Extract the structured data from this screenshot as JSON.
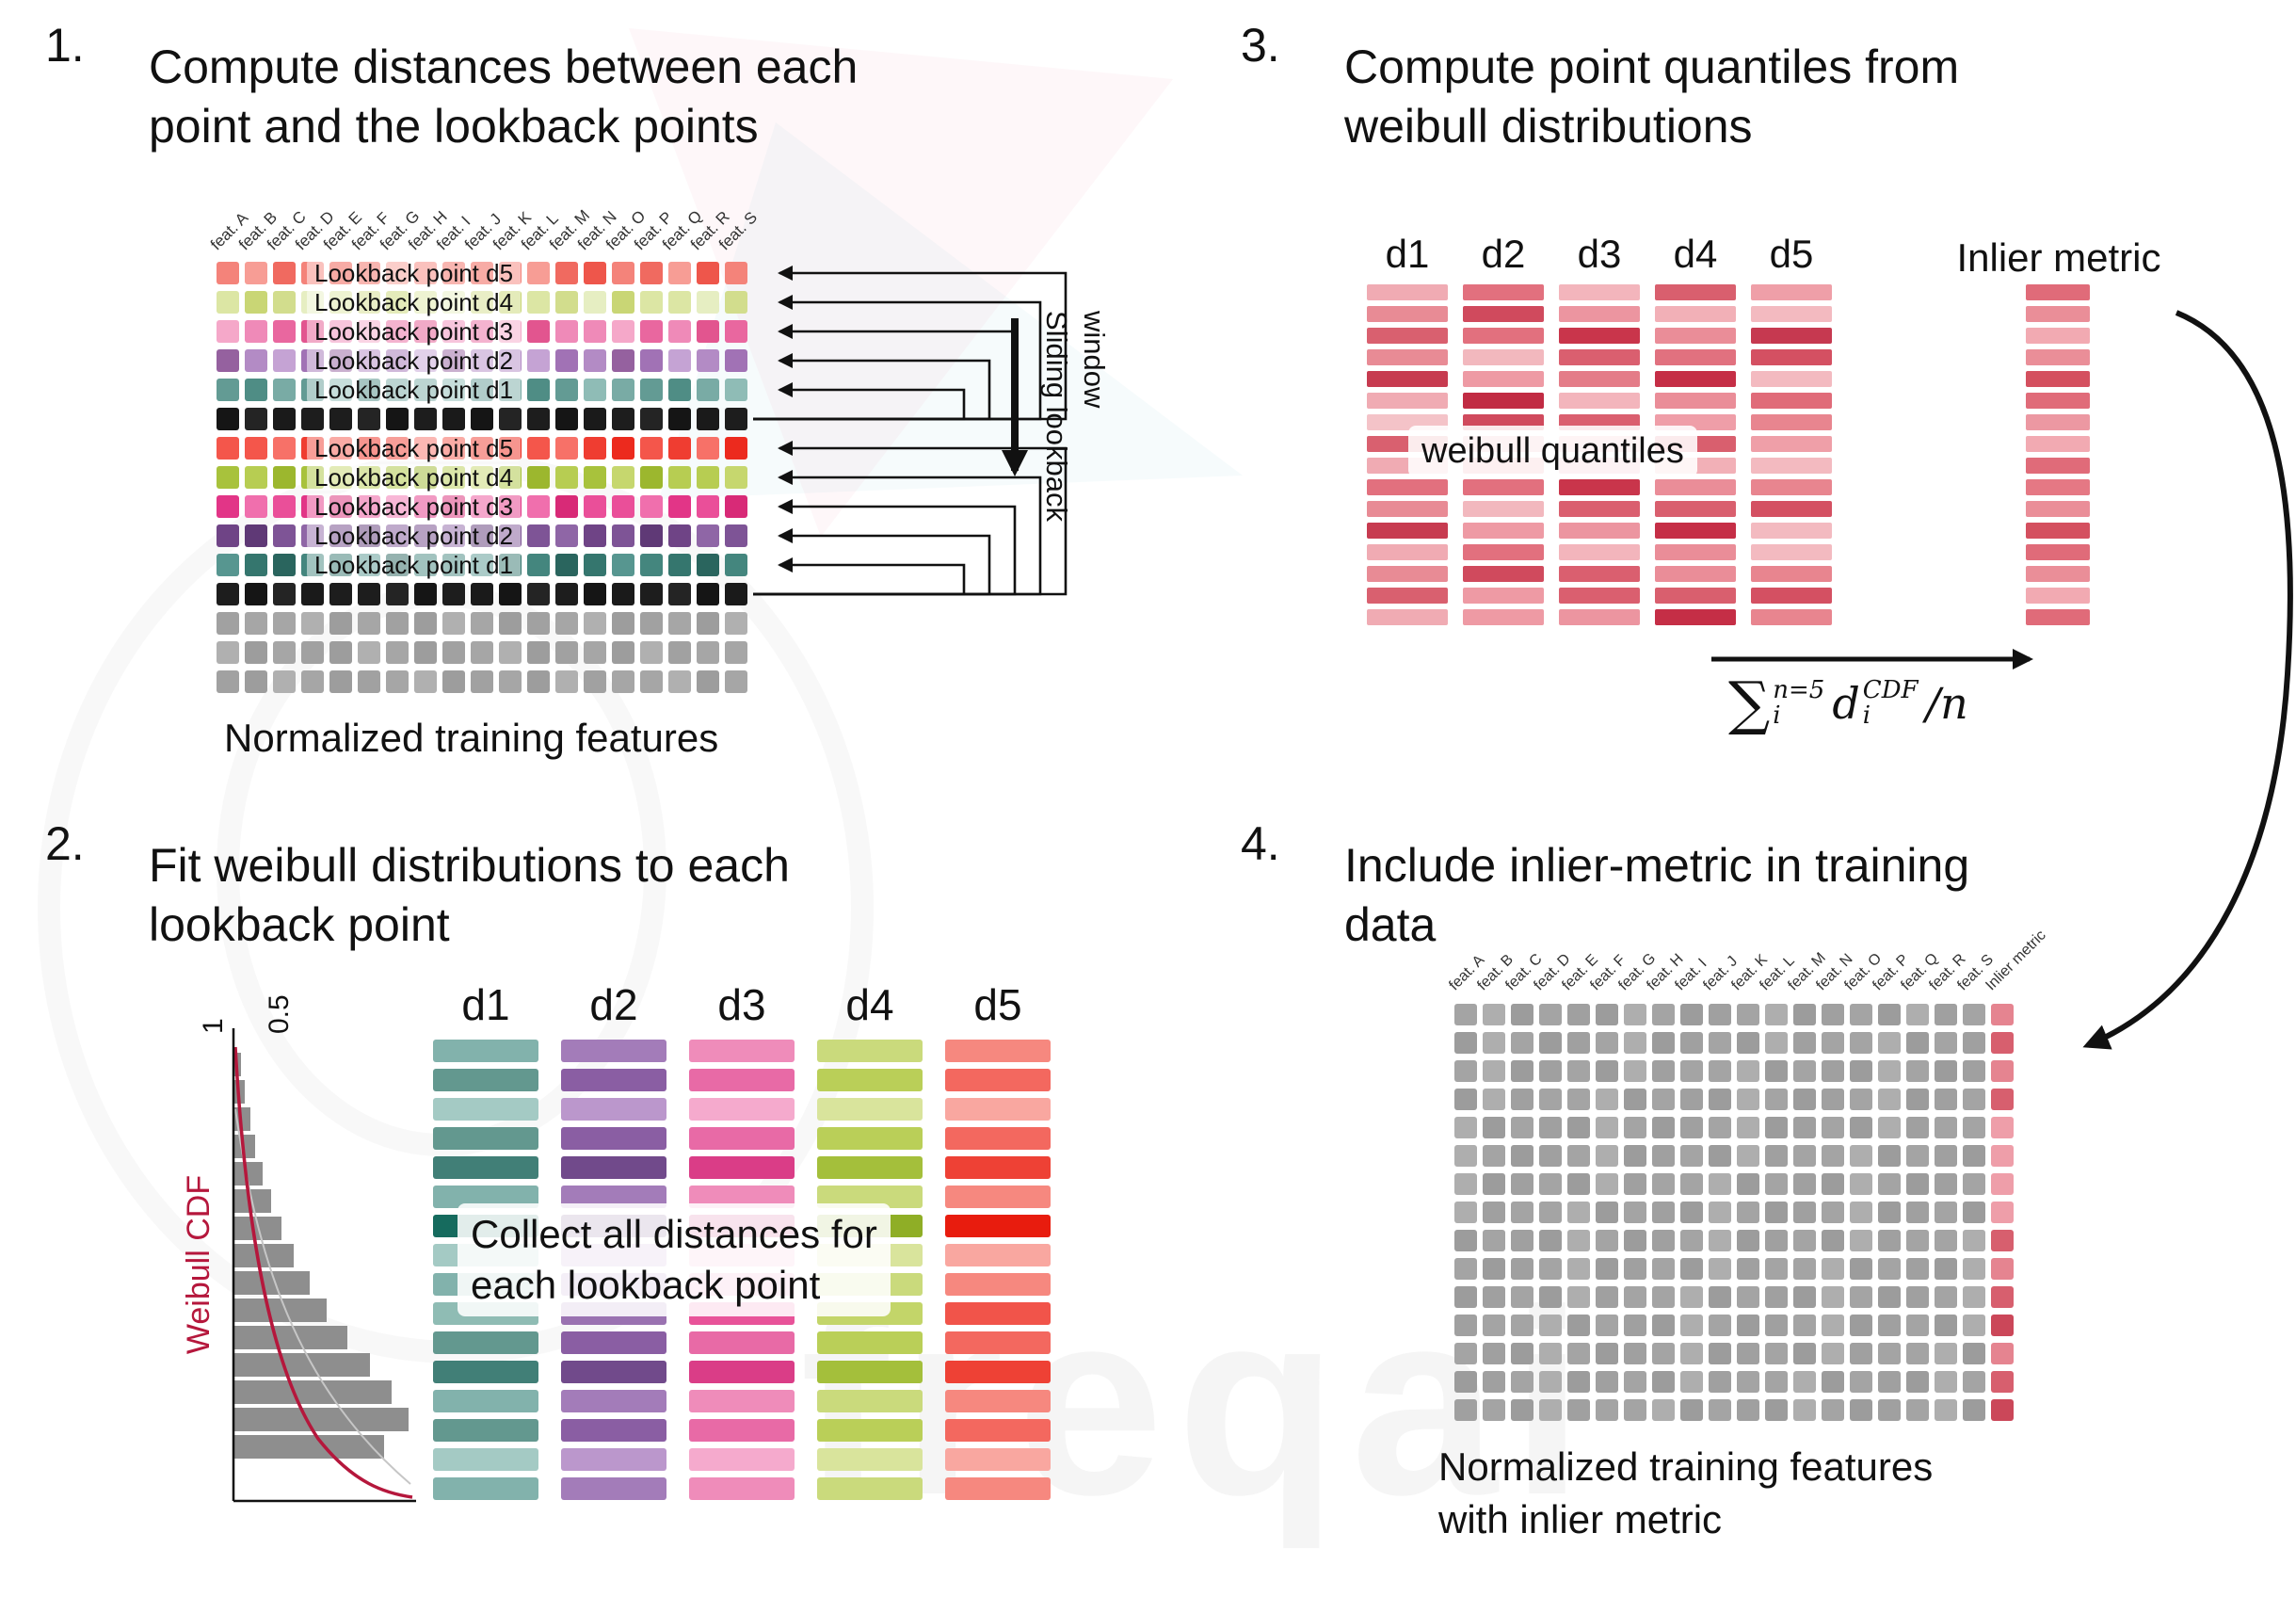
{
  "watermark": {
    "text": "freqai"
  },
  "features": [
    "feat. A",
    "feat. B",
    "feat. C",
    "feat. D",
    "feat. E",
    "feat. F",
    "feat. G",
    "feat. H",
    "feat. I",
    "feat. J",
    "feat. K",
    "feat. L",
    "feat. M",
    "feat. N",
    "feat. O",
    "feat. P",
    "feat. Q",
    "feat. R",
    "feat. S"
  ],
  "shade_pattern": [
    0,
    2,
    1,
    0,
    3,
    1,
    2,
    0,
    1,
    3,
    0,
    2,
    1,
    3,
    0,
    1,
    2,
    3,
    0
  ],
  "bar_pattern": [
    1,
    0,
    2,
    0,
    3,
    1,
    4,
    2,
    1,
    5,
    0,
    3,
    1,
    0,
    2,
    1
  ],
  "panel1": {
    "number": "1.",
    "title_line1": "Compute distances between each",
    "title_line2": "point and the lookback points",
    "caption": "Normalized training features",
    "sliding_label": "Sliding lookback window",
    "rows": [
      {
        "label": "Lookback point d5",
        "shades": [
          "#f4837a",
          "#f06a60",
          "#f79d95",
          "#ee564b"
        ]
      },
      {
        "label": "Lookback point d4",
        "shades": [
          "#dce6a4",
          "#d2dd8d",
          "#e6eec2",
          "#c9d675"
        ]
      },
      {
        "label": "Lookback point d3",
        "shades": [
          "#ef8ab8",
          "#e9679f",
          "#f5a8c9",
          "#e2558f"
        ]
      },
      {
        "label": "Lookback point d2",
        "shades": [
          "#b38bc5",
          "#a172b5",
          "#c5a3d4",
          "#95619f"
        ]
      },
      {
        "label": "Lookback point d1",
        "shades": [
          "#79aba5",
          "#639b94",
          "#8fbcb6",
          "#4f8d85"
        ]
      },
      {
        "label": null,
        "shades": [
          "#1d1d1d",
          "#151515",
          "#242424",
          "#1a1a1a"
        ]
      },
      {
        "label": "Lookback point d5",
        "shades": [
          "#f4564b",
          "#ef3d31",
          "#f77168",
          "#ec2a1e"
        ]
      },
      {
        "label": "Lookback point d4",
        "shades": [
          "#b7cd52",
          "#a8c23c",
          "#c6d76e",
          "#9cb72e"
        ]
      },
      {
        "label": "Lookback point d3",
        "shades": [
          "#ea4f99",
          "#e23587",
          "#f06fad",
          "#d82a77"
        ]
      },
      {
        "label": "Lookback point d2",
        "shades": [
          "#7e5496",
          "#6f4486",
          "#8f66a6",
          "#5f3976"
        ]
      },
      {
        "label": "Lookback point d1",
        "shades": [
          "#44867e",
          "#35766e",
          "#579690",
          "#2a655e"
        ]
      },
      {
        "label": null,
        "shades": [
          "#1d1d1d",
          "#151515",
          "#242424",
          "#1a1a1a"
        ]
      },
      {
        "label": null,
        "shades": [
          "#a6a6a6",
          "#9d9d9d",
          "#b0b0b0",
          "#a1a1a1"
        ]
      },
      {
        "label": null,
        "shades": [
          "#a6a6a6",
          "#9d9d9d",
          "#b0b0b0",
          "#a1a1a1"
        ]
      },
      {
        "label": null,
        "shades": [
          "#a6a6a6",
          "#9d9d9d",
          "#b0b0b0",
          "#a1a1a1"
        ]
      }
    ]
  },
  "panel2": {
    "number": "2.",
    "title_line1": "Fit weibull distributions to each",
    "title_line2": "lookback point",
    "overlay_line1": "Collect all distances for",
    "overlay_line2": "each lookback point",
    "columns": [
      {
        "label": "d1",
        "shades": [
          "#63988f",
          "#82b2ac",
          "#a4cac4",
          "#417f77",
          "#166b5e",
          "#8fbcb4"
        ]
      },
      {
        "label": "d2",
        "shades": [
          "#8a5ea3",
          "#a37cb9",
          "#bb97cc",
          "#714a8b",
          "#5b3677",
          "#9a72b1"
        ]
      },
      {
        "label": "d3",
        "shades": [
          "#e86aa6",
          "#ef8cba",
          "#f5aacd",
          "#da3d87",
          "#c2186e",
          "#e85399"
        ]
      },
      {
        "label": "d4",
        "shades": [
          "#bacf58",
          "#cada7c",
          "#d9e49c",
          "#a4bf3b",
          "#8fae26",
          "#c3d569"
        ]
      },
      {
        "label": "d5",
        "shades": [
          "#f3685f",
          "#f6887f",
          "#f9a7a0",
          "#ee4135",
          "#e81c0e",
          "#f1544a"
        ]
      }
    ],
    "weibull": {
      "label": "Weibull CDF",
      "tick1": "1",
      "tick2": "0.5",
      "curve_color": "#b5173c",
      "bar_color": "#8e8e8e",
      "bars": [
        0.04,
        0.06,
        0.09,
        0.12,
        0.16,
        0.21,
        0.27,
        0.34,
        0.43,
        0.53,
        0.65,
        0.78,
        0.9,
        1.0,
        0.86
      ]
    }
  },
  "panel3": {
    "number": "3.",
    "title_line1": "Compute point quantiles from",
    "title_line2": "weibull distributions",
    "overlay": "weibull quantiles",
    "columns": [
      {
        "label": "d1",
        "shades": [
          "#e88b95",
          "#f0abb3",
          "#d9606f",
          "#c73b50",
          "#f4c3c8",
          "#e2707e"
        ]
      },
      {
        "label": "d2",
        "shades": [
          "#e2707e",
          "#ee9aa4",
          "#d04a5d",
          "#f2b8be",
          "#c12b43",
          "#e8868f"
        ]
      },
      {
        "label": "d3",
        "shades": [
          "#ec95a0",
          "#da5f6f",
          "#f3b5bc",
          "#c9354b",
          "#e47c88",
          "#f0a6ae"
        ]
      },
      {
        "label": "d4",
        "shades": [
          "#d95f6e",
          "#ea8d98",
          "#c52e46",
          "#f2b0b7",
          "#e1717f",
          "#ef9ea8"
        ]
      },
      {
        "label": "d5",
        "shades": [
          "#e8858f",
          "#f3bac0",
          "#d45062",
          "#ef9fa8",
          "#c63950",
          "#e06b79"
        ]
      }
    ],
    "inlier": {
      "label": "Inlier metric",
      "shades": [
        "#ea8e98",
        "#e06b79",
        "#f2aab2",
        "#d4505f",
        "#ec98a2",
        "#e57884"
      ]
    },
    "formula": {
      "sum": "∑",
      "sum_sup": "n=5",
      "sum_sub": "i",
      "term": "d",
      "term_sup": "CDF",
      "term_sub": "i",
      "tail": "/n"
    }
  },
  "panel4": {
    "number": "4.",
    "title_line1": "Include inlier-metric in training",
    "title_line2": "data",
    "caption_line1": "Normalized training features",
    "caption_line2": "with inlier metric",
    "inlier_header": "Inlier metric",
    "grid": {
      "rows": 15,
      "gray_shades": [
        "#a4a4a4",
        "#9c9c9c",
        "#aeaeae",
        "#a0a0a0"
      ],
      "inlier_shades": [
        "#e58490",
        "#d75f6e",
        "#ee9ea9",
        "#cb4759"
      ]
    }
  }
}
